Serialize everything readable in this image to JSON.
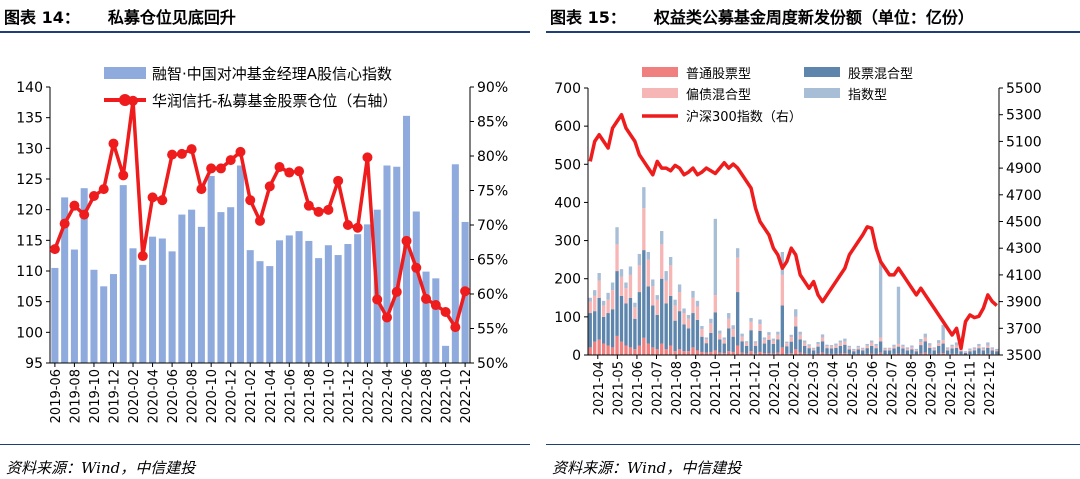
{
  "left": {
    "title_num": "图表 14：",
    "title_text": "私募仓位见底回升",
    "source": "资料来源：Wind，中信建投",
    "legend_bar": "融智·中国对冲基金经理A股信心指数",
    "legend_line": "华润信托-私募基金股票仓位（右轴）",
    "colors": {
      "bar": "#8faadc",
      "line": "#ee1c1c"
    }
  },
  "right": {
    "title_num": "图表 15：",
    "title_text": "权益类公募基金周度新发份额（单位：亿份）",
    "source": "资料来源：Wind，中信建投",
    "legend": [
      "普通股票型",
      "股票混合型",
      "偏债混合型",
      "指数型",
      "沪深300指数（右）"
    ],
    "colors": {
      "s1": "#f07f7f",
      "s2": "#5e86ad",
      "s3": "#f7b6b6",
      "s4": "#a8bdd6",
      "line": "#ee1c1c"
    }
  },
  "chart_data": [
    {
      "type": "bar",
      "title": "私募仓位见底回升",
      "categories": [
        "2019-06",
        "2019-07",
        "2019-08",
        "2019-09",
        "2019-10",
        "2019-11",
        "2019-12",
        "2020-01",
        "2020-02",
        "2020-03",
        "2020-04",
        "2020-05",
        "2020-06",
        "2020-07",
        "2020-08",
        "2020-09",
        "2020-10",
        "2020-11",
        "2020-12",
        "2021-01",
        "2021-02",
        "2021-03",
        "2021-04",
        "2021-05",
        "2021-06",
        "2021-07",
        "2021-08",
        "2021-09",
        "2021-10",
        "2021-11",
        "2021-12",
        "2022-01",
        "2022-02",
        "2022-03",
        "2022-04",
        "2022-05",
        "2022-06",
        "2022-07",
        "2022-08",
        "2022-09",
        "2022-10",
        "2022-11",
        "2022-12"
      ],
      "tick_labels": [
        "2019-06",
        "2019-08",
        "2019-10",
        "2019-12",
        "2020-02",
        "2020-04",
        "2020-06",
        "2020-08",
        "2020-10",
        "2020-12",
        "2021-02",
        "2021-04",
        "2021-06",
        "2021-08",
        "2021-10",
        "2021-12",
        "2022-02",
        "2022-04",
        "2022-06",
        "2022-08",
        "2022-10",
        "2022-12"
      ],
      "series": [
        {
          "name": "融智·中国对冲基金经理A股信心指数",
          "axis": "left",
          "values": [
            110.5,
            122,
            113.5,
            123.5,
            110.2,
            107.5,
            109.5,
            124,
            113.7,
            111,
            115.6,
            115.3,
            113.2,
            119.2,
            120,
            117.2,
            125.5,
            119.6,
            120.4,
            127.2,
            113.4,
            111.6,
            110.8,
            115,
            115.8,
            116.5,
            114.9,
            112.1,
            114.2,
            112.6,
            114.4,
            116,
            117.6,
            120,
            127.2,
            127,
            135.3,
            119.7,
            109.9,
            108.8,
            97.8,
            127.4,
            118
          ]
        },
        {
          "name": "华润信托-私募基金股票仓位（右轴）",
          "axis": "right",
          "values": [
            66.5,
            70.2,
            72.8,
            71.5,
            74.2,
            75.2,
            81.8,
            77.2,
            88,
            65.5,
            74,
            73.6,
            80.2,
            80.3,
            81,
            75.2,
            78.2,
            78.2,
            79.4,
            80.6,
            73.6,
            70.6,
            75.6,
            78.4,
            77.6,
            77.8,
            72.8,
            71.9,
            72.2,
            76.4,
            70,
            69.6,
            79.8,
            59.2,
            56.6,
            60.3,
            67.7,
            63.8,
            59.3,
            58.4,
            57.4,
            55.2,
            60.4
          ]
        }
      ],
      "ylim_left": [
        95,
        140
      ],
      "yticks_left": [
        "95",
        "100",
        "105",
        "110",
        "115",
        "120",
        "125",
        "130",
        "135",
        "140"
      ],
      "ylim_right": [
        50,
        90
      ],
      "yticks_right": [
        "50%",
        "55%",
        "60%",
        "65%",
        "70%",
        "75%",
        "80%",
        "85%",
        "90%"
      ]
    },
    {
      "type": "bar",
      "stacked": true,
      "title": "权益类公募基金周度新发份额（单位：亿份）",
      "tick_labels": [
        "2021-04",
        "2021-05",
        "2021-06",
        "2021-07",
        "2021-08",
        "2021-09",
        "2021-10",
        "2021-11",
        "2021-12",
        "2022-01",
        "2022-02",
        "2022-03",
        "2022-04",
        "2022-05",
        "2022-06",
        "2022-07",
        "2022-08",
        "2022-09",
        "2022-10",
        "2022-11",
        "2022-12"
      ],
      "weeks": 92,
      "series": [
        {
          "name": "普通股票型",
          "axis": "left",
          "values": [
            20,
            35,
            40,
            30,
            25,
            20,
            50,
            35,
            25,
            20,
            15,
            25,
            45,
            30,
            20,
            15,
            30,
            15,
            25,
            10,
            15,
            10,
            10,
            20,
            12,
            8,
            6,
            8,
            12,
            6,
            5,
            10,
            8,
            25,
            6,
            4,
            10,
            4,
            8,
            5,
            5,
            4,
            6,
            20,
            3,
            5,
            15,
            6,
            4,
            3,
            2,
            4,
            6,
            3,
            3,
            3,
            4,
            5,
            3,
            2,
            3,
            2,
            3,
            4,
            3,
            6,
            2,
            2,
            3,
            4,
            3,
            2,
            3,
            2,
            4,
            6,
            3,
            2,
            4,
            5,
            2,
            3,
            3,
            2,
            1,
            2,
            2,
            3,
            2,
            3,
            2,
            2
          ]
        },
        {
          "name": "股票混合型",
          "axis": "left",
          "values": [
            90,
            80,
            110,
            70,
            85,
            100,
            170,
            120,
            110,
            130,
            80,
            140,
            230,
            150,
            110,
            90,
            170,
            120,
            130,
            80,
            100,
            70,
            60,
            90,
            80,
            40,
            25,
            50,
            100,
            35,
            25,
            60,
            40,
            140,
            30,
            20,
            55,
            20,
            55,
            25,
            35,
            25,
            35,
            110,
            20,
            30,
            60,
            35,
            20,
            15,
            10,
            18,
            30,
            15,
            14,
            16,
            20,
            22,
            12,
            8,
            12,
            10,
            15,
            20,
            15,
            30,
            10,
            10,
            14,
            18,
            14,
            10,
            12,
            8,
            22,
            30,
            16,
            10,
            20,
            25,
            10,
            14,
            16,
            8,
            5,
            8,
            10,
            15,
            10,
            16,
            10,
            8
          ]
        },
        {
          "name": "偏债混合型",
          "axis": "left",
          "values": [
            30,
            40,
            45,
            30,
            35,
            50,
            70,
            50,
            40,
            60,
            30,
            70,
            110,
            70,
            50,
            40,
            90,
            60,
            80,
            40,
            50,
            30,
            25,
            40,
            35,
            20,
            10,
            25,
            45,
            15,
            10,
            25,
            20,
            90,
            12,
            8,
            22,
            8,
            18,
            10,
            12,
            8,
            12,
            80,
            8,
            12,
            25,
            12,
            8,
            6,
            4,
            6,
            10,
            5,
            5,
            6,
            8,
            8,
            5,
            3,
            5,
            4,
            6,
            8,
            6,
            10,
            4,
            4,
            5,
            7,
            5,
            4,
            5,
            3,
            8,
            10,
            6,
            4,
            7,
            9,
            4,
            5,
            6,
            3,
            2,
            3,
            4,
            5,
            4,
            6,
            4,
            3
          ]
        },
        {
          "name": "指数型",
          "axis": "left",
          "values": [
            10,
            15,
            20,
            12,
            18,
            20,
            45,
            20,
            15,
            22,
            12,
            30,
            55,
            20,
            18,
            12,
            35,
            25,
            22,
            15,
            20,
            12,
            10,
            18,
            15,
            8,
            5,
            12,
            200,
            8,
            6,
            15,
            10,
            25,
            8,
            4,
            10,
            4,
            12,
            6,
            8,
            6,
            8,
            60,
            4,
            6,
            20,
            8,
            6,
            4,
            3,
            6,
            8,
            4,
            4,
            5,
            6,
            8,
            4,
            3,
            4,
            3,
            5,
            6,
            5,
            200,
            3,
            3,
            5,
            150,
            5,
            4,
            5,
            3,
            8,
            10,
            6,
            4,
            8,
            40,
            4,
            5,
            8,
            4,
            2,
            4,
            4,
            6,
            4,
            8,
            4,
            3
          ]
        },
        {
          "name": "沪深300指数（右）",
          "axis": "right",
          "values": [
            4950,
            5100,
            5150,
            5100,
            5050,
            5200,
            5250,
            5300,
            5200,
            5150,
            5100,
            5000,
            4950,
            4900,
            4850,
            4950,
            4900,
            4900,
            4880,
            4920,
            4900,
            4850,
            4870,
            4900,
            4850,
            4870,
            4900,
            4880,
            4860,
            4900,
            4940,
            4900,
            4930,
            4900,
            4850,
            4800,
            4750,
            4600,
            4500,
            4450,
            4400,
            4300,
            4250,
            4150,
            4200,
            4300,
            4250,
            4100,
            4050,
            4000,
            4050,
            3950,
            3900,
            3950,
            4000,
            4050,
            4100,
            4150,
            4250,
            4300,
            4350,
            4400,
            4460,
            4450,
            4300,
            4200,
            4150,
            4100,
            4100,
            4150,
            4100,
            4050,
            4000,
            3950,
            4000,
            3950,
            3900,
            3850,
            3800,
            3750,
            3700,
            3650,
            3700,
            3550,
            3750,
            3800,
            3780,
            3790,
            3850,
            3950,
            3900,
            3870
          ]
        }
      ],
      "ylim_left": [
        0,
        700
      ],
      "yticks_left": [
        "0",
        "100",
        "200",
        "300",
        "400",
        "500",
        "600",
        "700"
      ],
      "ylim_right": [
        3500,
        5500
      ],
      "yticks_right": [
        "3500",
        "3700",
        "3900",
        "4100",
        "4300",
        "4500",
        "4700",
        "4900",
        "5100",
        "5300",
        "5500"
      ]
    }
  ]
}
